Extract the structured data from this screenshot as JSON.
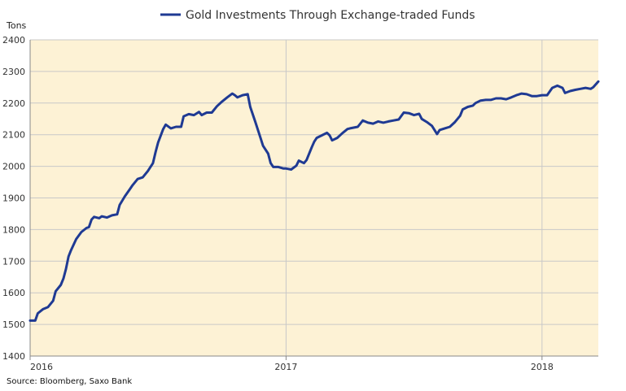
{
  "chart_data": {
    "type": "line",
    "title": "Gold Investments Through Exchange-traded Funds",
    "ylabel": "Tons",
    "xlabel": "",
    "source": "Source: Bloomberg, Saxo Bank",
    "ylim": [
      1400,
      2400
    ],
    "yticks": [
      1400,
      1500,
      1600,
      1700,
      1800,
      1900,
      2000,
      2100,
      2200,
      2300,
      2400
    ],
    "xlim": [
      2016.0,
      2018.22
    ],
    "xticks": [
      {
        "value": 2016,
        "label": "2016"
      },
      {
        "value": 2017,
        "label": "2017"
      },
      {
        "value": 2018,
        "label": "2018"
      }
    ],
    "grid": true,
    "plot_background": "#fdf2d5",
    "grid_color": "#c8c8c8",
    "legend_position": "top",
    "series": [
      {
        "name": "Gold Investments Through Exchange-traded Funds",
        "color": "#1f3a93",
        "points": [
          [
            2016.0,
            1512
          ],
          [
            2016.02,
            1512
          ],
          [
            2016.03,
            1535
          ],
          [
            2016.05,
            1548
          ],
          [
            2016.07,
            1555
          ],
          [
            2016.09,
            1575
          ],
          [
            2016.1,
            1605
          ],
          [
            2016.12,
            1625
          ],
          [
            2016.13,
            1645
          ],
          [
            2016.14,
            1675
          ],
          [
            2016.15,
            1715
          ],
          [
            2016.16,
            1735
          ],
          [
            2016.18,
            1770
          ],
          [
            2016.2,
            1792
          ],
          [
            2016.22,
            1805
          ],
          [
            2016.23,
            1808
          ],
          [
            2016.24,
            1832
          ],
          [
            2016.25,
            1840
          ],
          [
            2016.27,
            1836
          ],
          [
            2016.28,
            1842
          ],
          [
            2016.3,
            1838
          ],
          [
            2016.32,
            1845
          ],
          [
            2016.34,
            1848
          ],
          [
            2016.35,
            1878
          ],
          [
            2016.37,
            1905
          ],
          [
            2016.39,
            1928
          ],
          [
            2016.4,
            1940
          ],
          [
            2016.42,
            1960
          ],
          [
            2016.44,
            1965
          ],
          [
            2016.46,
            1985
          ],
          [
            2016.48,
            2010
          ],
          [
            2016.49,
            2045
          ],
          [
            2016.5,
            2075
          ],
          [
            2016.52,
            2118
          ],
          [
            2016.53,
            2132
          ],
          [
            2016.55,
            2120
          ],
          [
            2016.57,
            2125
          ],
          [
            2016.59,
            2125
          ],
          [
            2016.6,
            2158
          ],
          [
            2016.62,
            2165
          ],
          [
            2016.64,
            2162
          ],
          [
            2016.66,
            2172
          ],
          [
            2016.67,
            2162
          ],
          [
            2016.69,
            2170
          ],
          [
            2016.71,
            2170
          ],
          [
            2016.73,
            2190
          ],
          [
            2016.75,
            2205
          ],
          [
            2016.77,
            2218
          ],
          [
            2016.79,
            2230
          ],
          [
            2016.8,
            2225
          ],
          [
            2016.81,
            2218
          ],
          [
            2016.83,
            2225
          ],
          [
            2016.85,
            2228
          ],
          [
            2016.86,
            2188
          ],
          [
            2016.88,
            2140
          ],
          [
            2016.9,
            2090
          ],
          [
            2016.91,
            2065
          ],
          [
            2016.93,
            2040
          ],
          [
            2016.94,
            2010
          ],
          [
            2016.95,
            1998
          ],
          [
            2016.97,
            1998
          ],
          [
            2016.99,
            1993
          ],
          [
            2017.0,
            1993
          ],
          [
            2017.02,
            1990
          ],
          [
            2017.04,
            2002
          ],
          [
            2017.05,
            2018
          ],
          [
            2017.07,
            2010
          ],
          [
            2017.08,
            2020
          ],
          [
            2017.1,
            2060
          ],
          [
            2017.11,
            2078
          ],
          [
            2017.12,
            2090
          ],
          [
            2017.14,
            2098
          ],
          [
            2017.16,
            2106
          ],
          [
            2017.17,
            2098
          ],
          [
            2017.18,
            2082
          ],
          [
            2017.2,
            2090
          ],
          [
            2017.22,
            2105
          ],
          [
            2017.24,
            2118
          ],
          [
            2017.25,
            2120
          ],
          [
            2017.28,
            2125
          ],
          [
            2017.3,
            2145
          ],
          [
            2017.32,
            2138
          ],
          [
            2017.34,
            2135
          ],
          [
            2017.36,
            2142
          ],
          [
            2017.38,
            2138
          ],
          [
            2017.4,
            2142
          ],
          [
            2017.42,
            2145
          ],
          [
            2017.44,
            2148
          ],
          [
            2017.46,
            2170
          ],
          [
            2017.48,
            2168
          ],
          [
            2017.5,
            2162
          ],
          [
            2017.52,
            2166
          ],
          [
            2017.53,
            2150
          ],
          [
            2017.55,
            2140
          ],
          [
            2017.57,
            2128
          ],
          [
            2017.58,
            2115
          ],
          [
            2017.59,
            2102
          ],
          [
            2017.6,
            2115
          ],
          [
            2017.62,
            2120
          ],
          [
            2017.64,
            2125
          ],
          [
            2017.66,
            2140
          ],
          [
            2017.68,
            2160
          ],
          [
            2017.69,
            2180
          ],
          [
            2017.71,
            2188
          ],
          [
            2017.73,
            2192
          ],
          [
            2017.74,
            2200
          ],
          [
            2017.76,
            2208
          ],
          [
            2017.78,
            2210
          ],
          [
            2017.8,
            2210
          ],
          [
            2017.82,
            2215
          ],
          [
            2017.84,
            2215
          ],
          [
            2017.86,
            2212
          ],
          [
            2017.88,
            2218
          ],
          [
            2017.9,
            2225
          ],
          [
            2017.92,
            2230
          ],
          [
            2017.94,
            2228
          ],
          [
            2017.96,
            2222
          ],
          [
            2017.98,
            2222
          ],
          [
            2018.0,
            2225
          ],
          [
            2018.02,
            2225
          ],
          [
            2018.04,
            2248
          ],
          [
            2018.06,
            2255
          ],
          [
            2018.08,
            2248
          ],
          [
            2018.09,
            2232
          ],
          [
            2018.11,
            2238
          ],
          [
            2018.13,
            2242
          ],
          [
            2018.15,
            2245
          ],
          [
            2018.17,
            2248
          ],
          [
            2018.19,
            2245
          ],
          [
            2018.2,
            2250
          ],
          [
            2018.22,
            2268
          ]
        ]
      }
    ]
  }
}
